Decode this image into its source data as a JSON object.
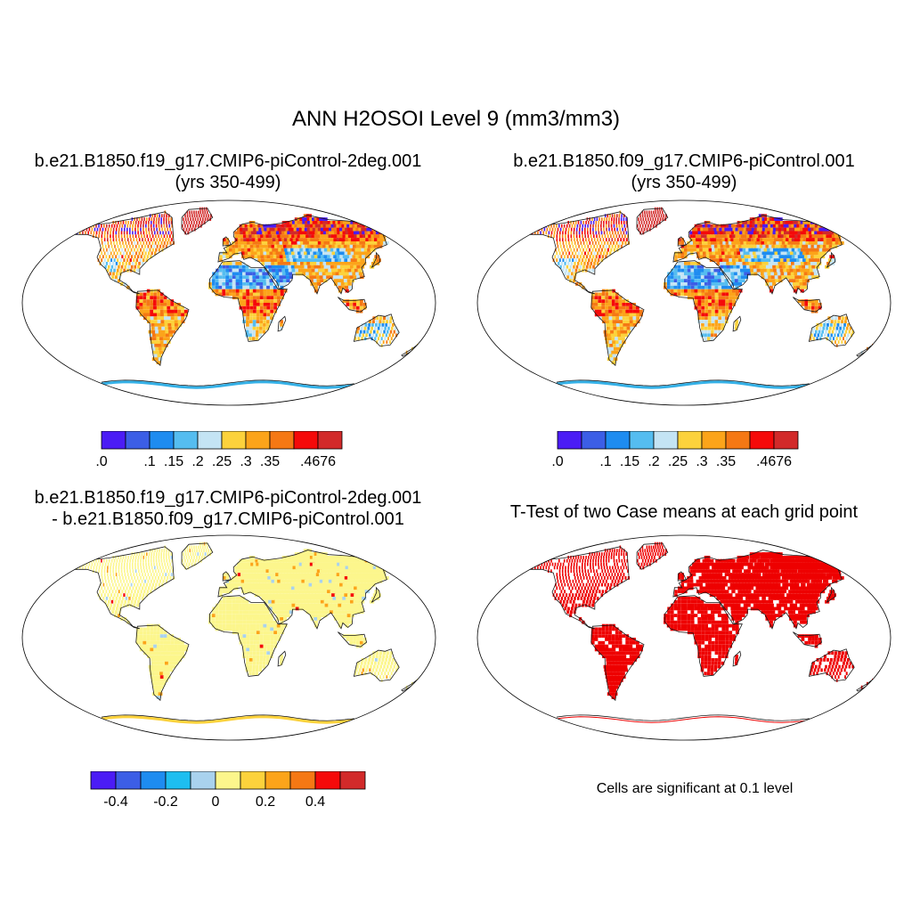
{
  "title": "ANN H2OSOI Level 9 (mm3/mm3)",
  "panels": [
    {
      "id": "p1",
      "line1": "b.e21.B1850.f19_g17.CMIP6-piControl-2deg.001",
      "line2": "(yrs 350-499)",
      "kind": "abs",
      "seed": 11
    },
    {
      "id": "p2",
      "line1": "b.e21.B1850.f09_g17.CMIP6-piControl.001",
      "line2": "(yrs 350-499)",
      "kind": "abs",
      "seed": 29
    },
    {
      "id": "p3",
      "line1": "b.e21.B1850.f19_g17.CMIP6-piControl-2deg.001",
      "line2": "- b.e21.B1850.f09_g17.CMIP6-piControl.001",
      "kind": "diff",
      "seed": 47
    },
    {
      "id": "p4",
      "line1": "T-Test of two Case means at each grid point",
      "line2": "",
      "kind": "sig",
      "seed": 83
    }
  ],
  "colorbars": [
    {
      "id": "cbar-1",
      "colors": [
        "#4b1cf5",
        "#3c5ee6",
        "#1e8cf0",
        "#55bdf0",
        "#c4e4f4",
        "#fcd23c",
        "#fca41a",
        "#f57814",
        "#f50a0a",
        "#d22a2a"
      ],
      "labels": [
        ".0",
        "",
        ".1",
        ".15",
        ".2",
        ".25",
        ".3",
        ".35",
        "",
        ".4676"
      ]
    },
    {
      "id": "cbar-2",
      "colors": [
        "#4b1cf5",
        "#3c5ee6",
        "#1e8cf0",
        "#55bdf0",
        "#c4e4f4",
        "#fcd23c",
        "#fca41a",
        "#f57814",
        "#f50a0a",
        "#d22a2a"
      ],
      "labels": [
        ".0",
        "",
        ".1",
        ".15",
        ".2",
        ".25",
        ".3",
        ".35",
        "",
        ".4676"
      ]
    },
    {
      "id": "cbar-3",
      "colors": [
        "#4b1cf5",
        "#3c5ee6",
        "#1e8cf0",
        "#1ebef0",
        "#a9d2ee",
        "#fcf68c",
        "#fcd23c",
        "#fca41a",
        "#f57814",
        "#f50a0a",
        "#d22a2a"
      ],
      "labels": [
        "",
        "-0.4",
        "",
        "-0.2",
        "",
        "0",
        "",
        "0.2",
        "",
        "0.4",
        ""
      ]
    }
  ],
  "significance_note": "Cells are significant at 0.1 level",
  "map_colors": {
    "outline": "#000000",
    "coast": "#1a1a1a",
    "sig": "#ee0000",
    "antarctic_edge_abs": "#34b0e6",
    "antarctic_edge_diff": "#fcd23c"
  }
}
